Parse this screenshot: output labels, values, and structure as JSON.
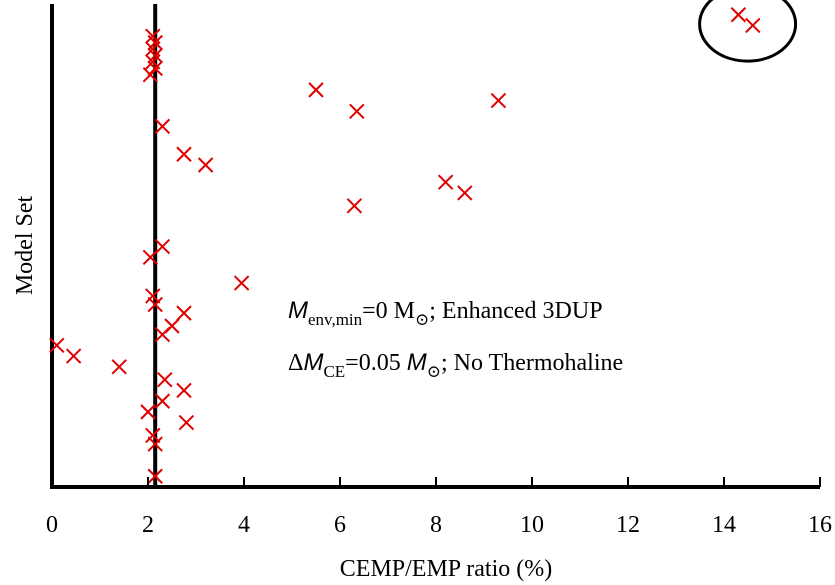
{
  "chart_data": {
    "type": "scatter",
    "title": "",
    "xlabel": "CEMP/EMP ratio (%)",
    "ylabel": "Model Set",
    "xlim": [
      0,
      16
    ],
    "xticks": [
      "0",
      "2",
      "4",
      "6",
      "8",
      "10",
      "12",
      "14",
      "16"
    ],
    "yticks": [],
    "grid": false,
    "marker": "x",
    "marker_color": "#e00000",
    "reference_line": {
      "x": 2.15,
      "label": ""
    },
    "highlight": {
      "shape": "circle",
      "around_x": [
        14.3,
        14.6
      ]
    },
    "annotations": [
      {
        "id": "line1",
        "parts": [
          {
            "t": "M",
            "style": "italic"
          },
          {
            "t": "env,min",
            "style": "sub"
          },
          {
            "t": "=0 M",
            "style": "normal"
          },
          {
            "t": "⊙",
            "style": "sub"
          },
          {
            "t": "; Enhanced 3DUP",
            "style": "normal"
          }
        ]
      },
      {
        "id": "line2",
        "parts": [
          {
            "t": "Δ",
            "style": "normal"
          },
          {
            "t": "M",
            "style": "italic"
          },
          {
            "t": "CE",
            "style": "sub"
          },
          {
            "t": "=0.05 ",
            "style": "normal"
          },
          {
            "t": "M",
            "style": "italic"
          },
          {
            "t": "⊙",
            "style": "sub"
          },
          {
            "t": "; No Thermohaline",
            "style": "normal"
          }
        ]
      }
    ],
    "points": [
      {
        "x": 14.3,
        "y": 44
      },
      {
        "x": 14.6,
        "y": 43
      },
      {
        "x": 2.1,
        "y": 42
      },
      {
        "x": 2.15,
        "y": 41.4
      },
      {
        "x": 2.1,
        "y": 40.8
      },
      {
        "x": 2.15,
        "y": 40.2
      },
      {
        "x": 2.1,
        "y": 39.6
      },
      {
        "x": 2.15,
        "y": 39
      },
      {
        "x": 2.05,
        "y": 38.4
      },
      {
        "x": 5.5,
        "y": 37
      },
      {
        "x": 9.3,
        "y": 36
      },
      {
        "x": 6.35,
        "y": 35
      },
      {
        "x": 2.3,
        "y": 33.6
      },
      {
        "x": 2.75,
        "y": 31
      },
      {
        "x": 3.2,
        "y": 30
      },
      {
        "x": 8.2,
        "y": 28.4
      },
      {
        "x": 8.6,
        "y": 27.4
      },
      {
        "x": 6.3,
        "y": 26.2
      },
      {
        "x": 2.3,
        "y": 22.4
      },
      {
        "x": 2.05,
        "y": 21.4
      },
      {
        "x": 3.95,
        "y": 19
      },
      {
        "x": 2.1,
        "y": 17.8
      },
      {
        "x": 2.15,
        "y": 17
      },
      {
        "x": 2.75,
        "y": 16.2
      },
      {
        "x": 2.5,
        "y": 15
      },
      {
        "x": 2.3,
        "y": 14.2
      },
      {
        "x": 0.1,
        "y": 13.2
      },
      {
        "x": 0.45,
        "y": 12.2
      },
      {
        "x": 1.4,
        "y": 11.2
      },
      {
        "x": 2.35,
        "y": 10
      },
      {
        "x": 2.75,
        "y": 9
      },
      {
        "x": 2.3,
        "y": 8
      },
      {
        "x": 2.0,
        "y": 7
      },
      {
        "x": 2.8,
        "y": 6
      },
      {
        "x": 2.1,
        "y": 4.8
      },
      {
        "x": 2.15,
        "y": 4
      },
      {
        "x": 2.15,
        "y": 1
      }
    ],
    "ylim": [
      0,
      45
    ]
  }
}
